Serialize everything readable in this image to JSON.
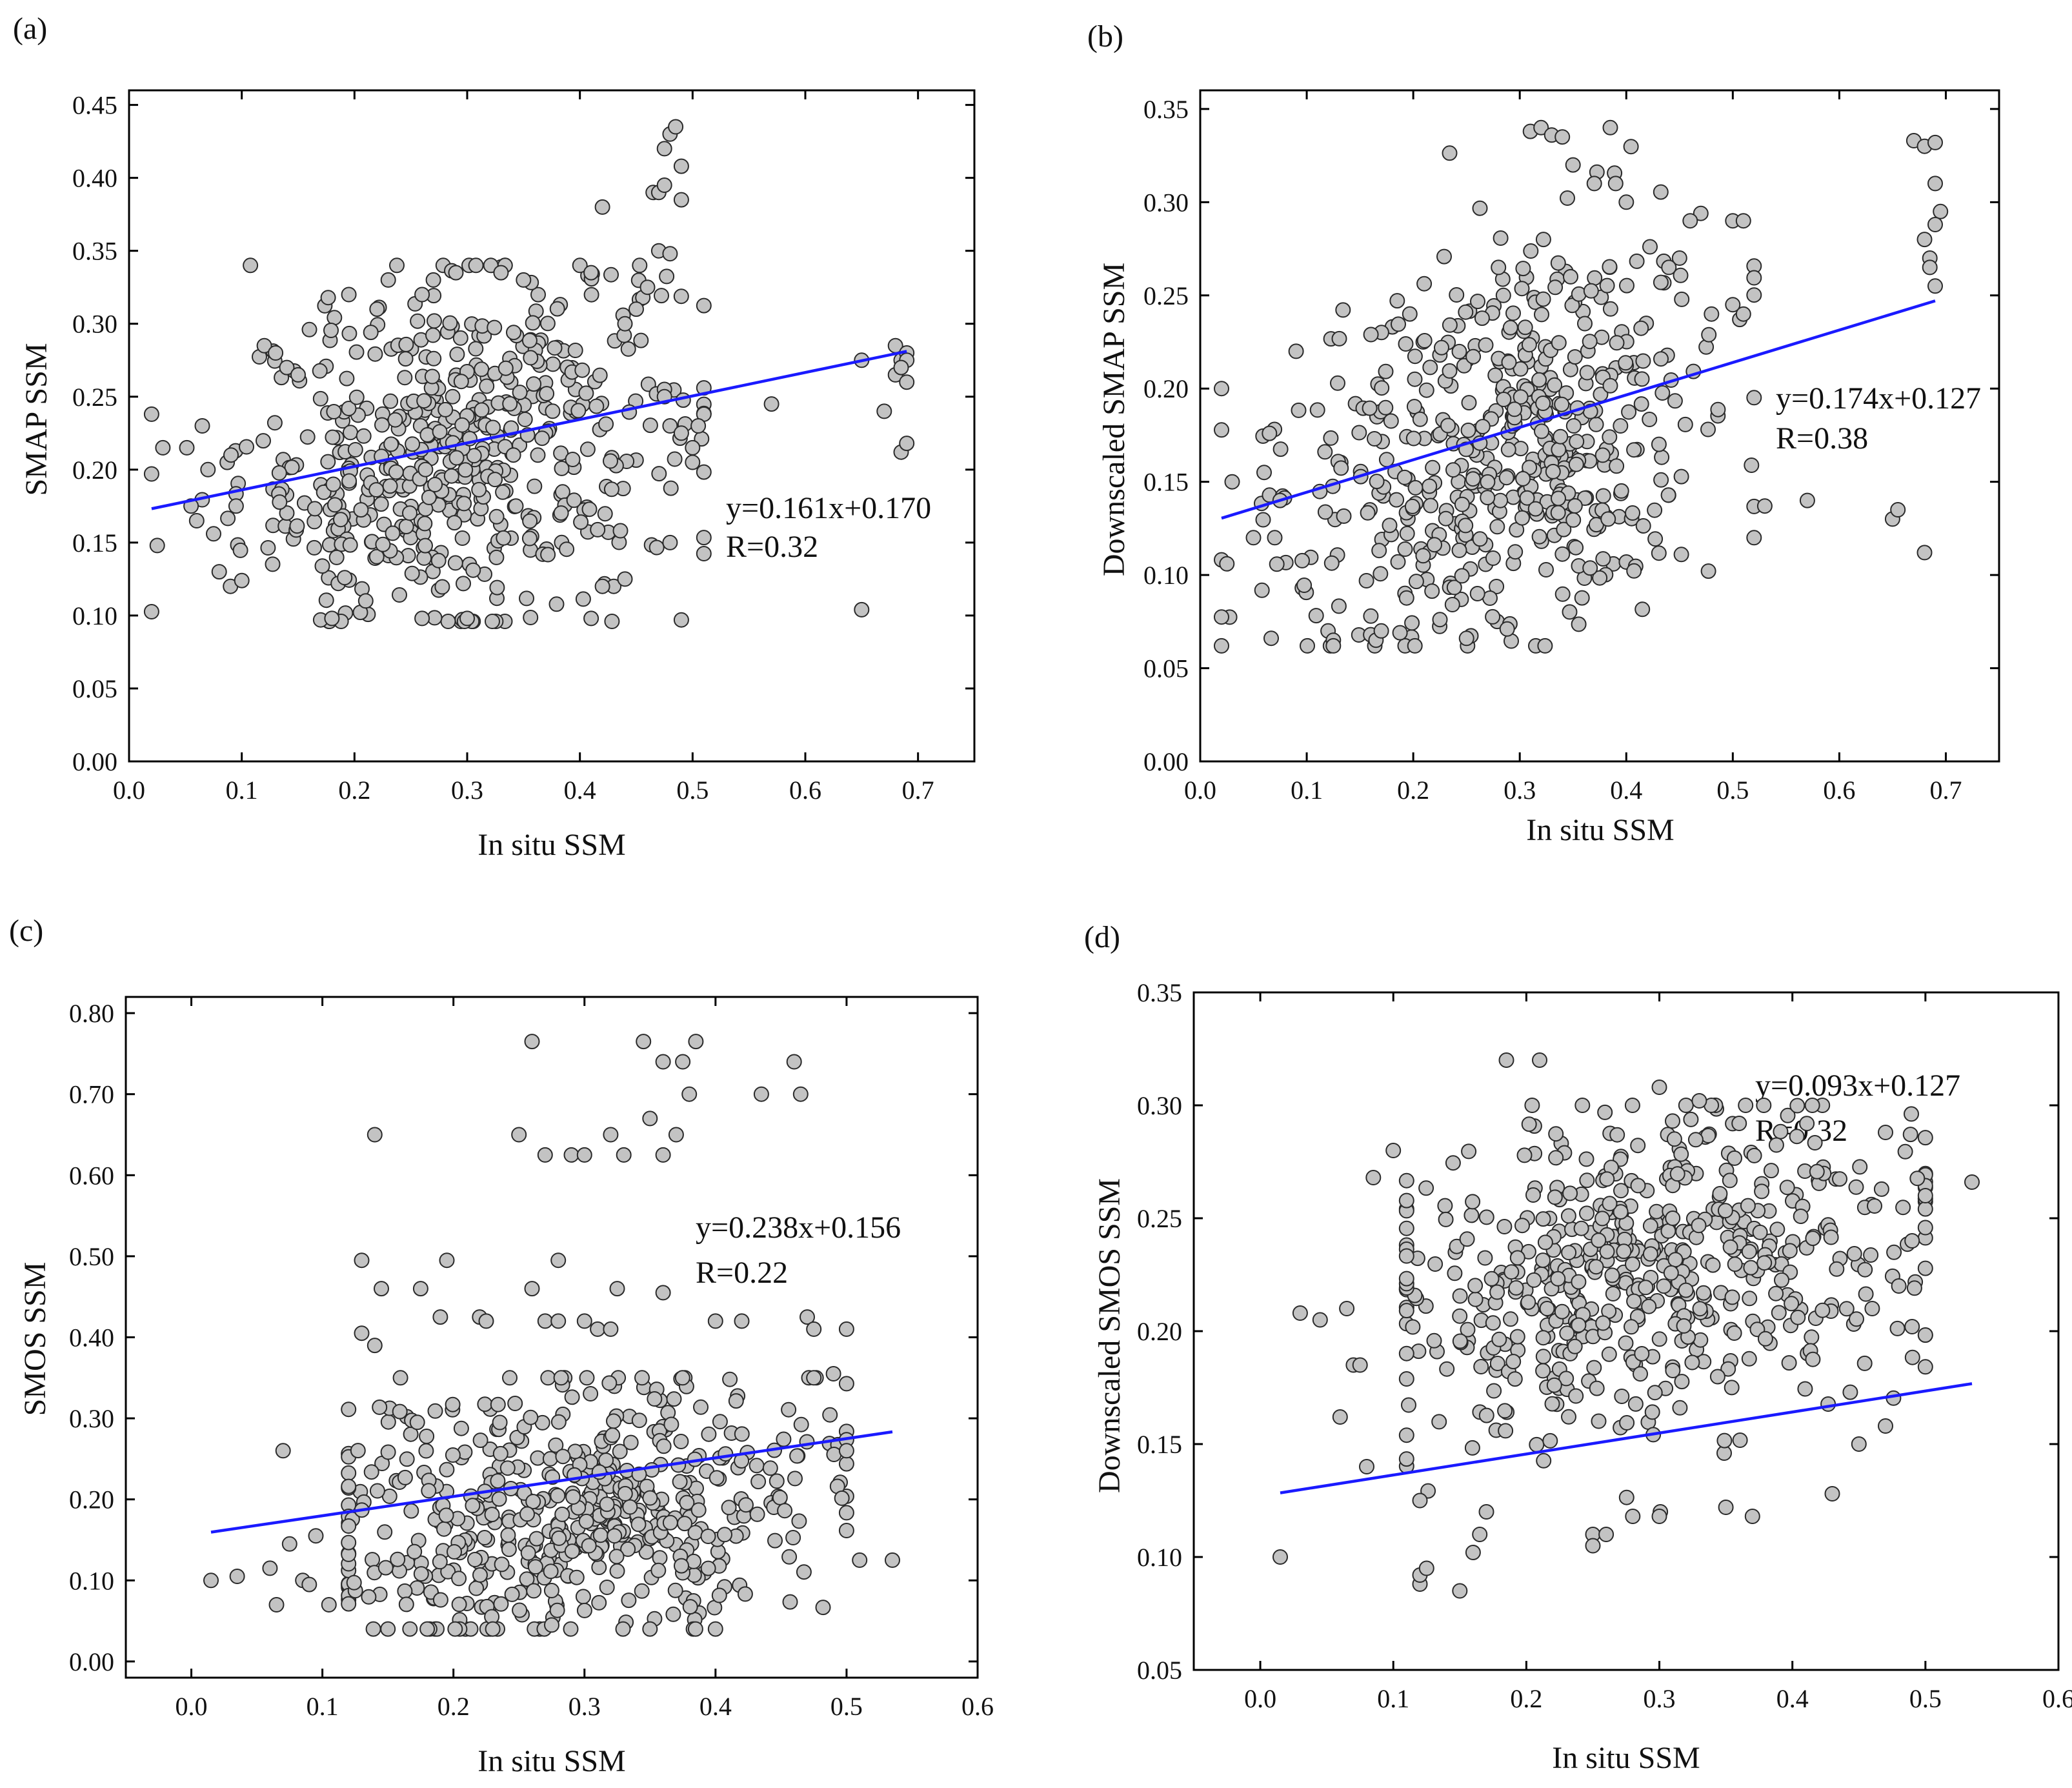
{
  "figure": {
    "xlabel_common": "In situ SSM"
  },
  "chart_data": [
    {
      "panel": "(a)",
      "type": "scatter",
      "xlabel": "In situ SSM",
      "ylabel": "SMAP SSM",
      "xlim": [
        0.0,
        0.75
      ],
      "ylim": [
        0.0,
        0.46
      ],
      "xticks": [
        0.0,
        0.1,
        0.2,
        0.3,
        0.4,
        0.5,
        0.6,
        0.7
      ],
      "xtick_labels": [
        "0.0",
        "0.1",
        "0.2",
        "0.3",
        "0.4",
        "0.5",
        "0.6",
        "0.7"
      ],
      "yticks": [
        0.0,
        0.05,
        0.1,
        0.15,
        0.2,
        0.25,
        0.3,
        0.35,
        0.4,
        0.45
      ],
      "ytick_labels": [
        "0.00",
        "0.05",
        "0.10",
        "0.15",
        "0.20",
        "0.25",
        "0.30",
        "0.35",
        "0.40",
        "0.45"
      ],
      "fit": {
        "slope": 0.161,
        "intercept": 0.17,
        "x_range": [
          0.02,
          0.69
        ]
      },
      "equation": "y=0.161x+0.170",
      "r_text": "R=0.32",
      "cluster": {
        "n": 520,
        "x_mean": 0.29,
        "x_sd": 0.095,
        "x_min": 0.02,
        "x_max": 0.51,
        "y_min": 0.096,
        "y_max": 0.34,
        "y_center": 0.215,
        "y_sd": 0.058
      },
      "points": [
        [
          0.02,
          0.238
        ],
        [
          0.025,
          0.148
        ],
        [
          0.03,
          0.215
        ],
        [
          0.055,
          0.175
        ],
        [
          0.06,
          0.165
        ],
        [
          0.065,
          0.23
        ],
        [
          0.07,
          0.2
        ],
        [
          0.075,
          0.156
        ],
        [
          0.08,
          0.13
        ],
        [
          0.09,
          0.12
        ],
        [
          0.095,
          0.175
        ],
        [
          0.1,
          0.124
        ],
        [
          0.12,
          0.285
        ],
        [
          0.13,
          0.28
        ],
        [
          0.14,
          0.27
        ],
        [
          0.15,
          0.265
        ],
        [
          0.16,
          0.296
        ],
        [
          0.195,
          0.32
        ],
        [
          0.22,
          0.31
        ],
        [
          0.23,
          0.33
        ],
        [
          0.26,
          0.32
        ],
        [
          0.27,
          0.33
        ],
        [
          0.29,
          0.335
        ],
        [
          0.33,
          0.335
        ],
        [
          0.35,
          0.33
        ],
        [
          0.4,
          0.34
        ],
        [
          0.41,
          0.335
        ],
        [
          0.42,
          0.38
        ],
        [
          0.44,
          0.3
        ],
        [
          0.45,
          0.31
        ],
        [
          0.46,
          0.325
        ],
        [
          0.465,
          0.39
        ],
        [
          0.47,
          0.39
        ],
        [
          0.47,
          0.35
        ],
        [
          0.475,
          0.395
        ],
        [
          0.475,
          0.42
        ],
        [
          0.48,
          0.43
        ],
        [
          0.485,
          0.435
        ],
        [
          0.49,
          0.408
        ],
        [
          0.49,
          0.385
        ],
        [
          0.48,
          0.348
        ],
        [
          0.475,
          0.255
        ],
        [
          0.475,
          0.25
        ],
        [
          0.48,
          0.15
        ],
        [
          0.49,
          0.097
        ],
        [
          0.48,
          0.23
        ],
        [
          0.49,
          0.225
        ],
        [
          0.5,
          0.215
        ],
        [
          0.51,
          0.238
        ],
        [
          0.505,
          0.23
        ],
        [
          0.5,
          0.205
        ],
        [
          0.57,
          0.245
        ],
        [
          0.65,
          0.275
        ],
        [
          0.65,
          0.104
        ],
        [
          0.67,
          0.24
        ],
        [
          0.68,
          0.265
        ],
        [
          0.68,
          0.285
        ],
        [
          0.685,
          0.275
        ],
        [
          0.685,
          0.212
        ],
        [
          0.69,
          0.26
        ],
        [
          0.69,
          0.218
        ],
        [
          0.69,
          0.28
        ],
        [
          0.69,
          0.275
        ],
        [
          0.685,
          0.27
        ],
        [
          0.41,
          0.098
        ],
        [
          0.26,
          0.098
        ],
        [
          0.21,
          0.11
        ],
        [
          0.43,
          0.12
        ],
        [
          0.44,
          0.125
        ],
        [
          0.42,
          0.12
        ],
        [
          0.17,
          0.097
        ],
        [
          0.18,
          0.098
        ],
        [
          0.3,
          0.098
        ]
      ]
    },
    {
      "panel": "(b)",
      "type": "scatter",
      "xlabel": "In situ SSM",
      "ylabel": "Downscaled SMAP SSM",
      "xlim": [
        0.0,
        0.75
      ],
      "ylim": [
        0.0,
        0.36
      ],
      "xticks": [
        0.0,
        0.1,
        0.2,
        0.3,
        0.4,
        0.5,
        0.6,
        0.7
      ],
      "xtick_labels": [
        "0.0",
        "0.1",
        "0.2",
        "0.3",
        "0.4",
        "0.5",
        "0.6",
        "0.7"
      ],
      "yticks": [
        0.0,
        0.05,
        0.1,
        0.15,
        0.2,
        0.25,
        0.3,
        0.35
      ],
      "ytick_labels": [
        "0.00",
        "0.05",
        "0.10",
        "0.15",
        "0.20",
        "0.25",
        "0.30",
        "0.35"
      ],
      "fit": {
        "slope": 0.174,
        "intercept": 0.127,
        "x_range": [
          0.02,
          0.69
        ]
      },
      "equation": "y=0.174x+0.127",
      "r_text": "R=0.38",
      "cluster": {
        "n": 520,
        "x_mean": 0.28,
        "x_sd": 0.1,
        "x_min": 0.02,
        "x_max": 0.52,
        "y_min": 0.062,
        "y_max": 0.34,
        "y_center": 0.17,
        "y_sd": 0.052
      },
      "points": [
        [
          0.02,
          0.2
        ],
        [
          0.025,
          0.106
        ],
        [
          0.03,
          0.15
        ],
        [
          0.05,
          0.12
        ],
        [
          0.06,
          0.155
        ],
        [
          0.065,
          0.176
        ],
        [
          0.07,
          0.12
        ],
        [
          0.075,
          0.14
        ],
        [
          0.09,
          0.22
        ],
        [
          0.12,
          0.07
        ],
        [
          0.125,
          0.065
        ],
        [
          0.125,
          0.062
        ],
        [
          0.16,
          0.068
        ],
        [
          0.165,
          0.065
        ],
        [
          0.17,
          0.07
        ],
        [
          0.25,
          0.066
        ],
        [
          0.31,
          0.338
        ],
        [
          0.32,
          0.34
        ],
        [
          0.33,
          0.336
        ],
        [
          0.34,
          0.335
        ],
        [
          0.385,
          0.34
        ],
        [
          0.39,
          0.31
        ],
        [
          0.4,
          0.3
        ],
        [
          0.37,
          0.31
        ],
        [
          0.35,
          0.32
        ],
        [
          0.47,
          0.294
        ],
        [
          0.5,
          0.29
        ],
        [
          0.51,
          0.29
        ],
        [
          0.46,
          0.29
        ],
        [
          0.48,
          0.24
        ],
        [
          0.5,
          0.245
        ],
        [
          0.51,
          0.24
        ],
        [
          0.52,
          0.12
        ],
        [
          0.53,
          0.137
        ],
        [
          0.57,
          0.14
        ],
        [
          0.65,
          0.13
        ],
        [
          0.655,
          0.135
        ],
        [
          0.68,
          0.112
        ],
        [
          0.67,
          0.333
        ],
        [
          0.68,
          0.33
        ],
        [
          0.69,
          0.332
        ],
        [
          0.69,
          0.31
        ],
        [
          0.695,
          0.295
        ],
        [
          0.69,
          0.288
        ],
        [
          0.68,
          0.28
        ],
        [
          0.685,
          0.27
        ],
        [
          0.69,
          0.255
        ],
        [
          0.685,
          0.265
        ],
        [
          0.28,
          0.265
        ],
        [
          0.45,
          0.27
        ],
        [
          0.44,
          0.265
        ]
      ]
    },
    {
      "panel": "(c)",
      "type": "scatter",
      "xlabel": "In situ SSM",
      "ylabel": "SMOS SSM",
      "xlim": [
        -0.05,
        0.6
      ],
      "ylim": [
        -0.02,
        0.82
      ],
      "xticks": [
        0.0,
        0.1,
        0.2,
        0.3,
        0.4,
        0.5,
        0.6
      ],
      "xtick_labels": [
        "0.0",
        "0.1",
        "0.2",
        "0.3",
        "0.4",
        "0.5",
        "0.6"
      ],
      "yticks": [
        0.0,
        0.1,
        0.2,
        0.3,
        0.4,
        0.5,
        0.6,
        0.7,
        0.8
      ],
      "ytick_labels": [
        "0.00",
        "0.10",
        "0.20",
        "0.30",
        "0.40",
        "0.50",
        "0.60",
        "0.70",
        "0.80"
      ],
      "fit": {
        "slope": 0.238,
        "intercept": 0.156,
        "x_range": [
          0.015,
          0.535
        ]
      },
      "equation": "y=0.238x+0.156",
      "r_text": "R=0.22",
      "cluster": {
        "n": 540,
        "x_mean": 0.29,
        "x_sd": 0.1,
        "x_min": 0.12,
        "x_max": 0.5,
        "y_min": 0.04,
        "y_max": 0.35,
        "y_center": 0.18,
        "y_sd": 0.085
      },
      "points": [
        [
          0.015,
          0.1
        ],
        [
          0.035,
          0.105
        ],
        [
          0.06,
          0.115
        ],
        [
          0.065,
          0.07
        ],
        [
          0.07,
          0.26
        ],
        [
          0.075,
          0.145
        ],
        [
          0.085,
          0.1
        ],
        [
          0.09,
          0.095
        ],
        [
          0.095,
          0.155
        ],
        [
          0.105,
          0.07
        ],
        [
          0.14,
          0.65
        ],
        [
          0.13,
          0.495
        ],
        [
          0.145,
          0.46
        ],
        [
          0.175,
          0.46
        ],
        [
          0.19,
          0.425
        ],
        [
          0.195,
          0.495
        ],
        [
          0.22,
          0.425
        ],
        [
          0.225,
          0.42
        ],
        [
          0.25,
          0.65
        ],
        [
          0.26,
          0.765
        ],
        [
          0.27,
          0.625
        ],
        [
          0.28,
          0.495
        ],
        [
          0.29,
          0.625
        ],
        [
          0.3,
          0.625
        ],
        [
          0.32,
          0.65
        ],
        [
          0.33,
          0.625
        ],
        [
          0.345,
          0.765
        ],
        [
          0.35,
          0.67
        ],
        [
          0.36,
          0.625
        ],
        [
          0.36,
          0.74
        ],
        [
          0.37,
          0.65
        ],
        [
          0.375,
          0.74
        ],
        [
          0.38,
          0.7
        ],
        [
          0.385,
          0.765
        ],
        [
          0.435,
          0.7
        ],
        [
          0.46,
          0.74
        ],
        [
          0.465,
          0.7
        ],
        [
          0.47,
          0.425
        ],
        [
          0.475,
          0.41
        ],
        [
          0.5,
          0.41
        ],
        [
          0.49,
          0.355
        ],
        [
          0.475,
          0.35
        ],
        [
          0.5,
          0.26
        ],
        [
          0.51,
          0.125
        ],
        [
          0.535,
          0.125
        ],
        [
          0.36,
          0.455
        ],
        [
          0.325,
          0.46
        ],
        [
          0.26,
          0.46
        ],
        [
          0.27,
          0.42
        ],
        [
          0.28,
          0.42
        ],
        [
          0.3,
          0.42
        ],
        [
          0.31,
          0.41
        ],
        [
          0.32,
          0.41
        ],
        [
          0.4,
          0.42
        ],
        [
          0.42,
          0.42
        ],
        [
          0.13,
          0.405
        ],
        [
          0.14,
          0.39
        ],
        [
          0.4,
          0.04
        ],
        [
          0.35,
          0.04
        ],
        [
          0.23,
          0.04
        ],
        [
          0.15,
          0.04
        ],
        [
          0.275,
          0.045
        ]
      ]
    },
    {
      "panel": "(d)",
      "type": "scatter",
      "xlabel": "In situ SSM",
      "ylabel": "Downscaled SMOS SSM",
      "xlim": [
        -0.05,
        0.6
      ],
      "ylim": [
        0.05,
        0.35
      ],
      "xticks": [
        0.0,
        0.1,
        0.2,
        0.3,
        0.4,
        0.5,
        0.6
      ],
      "xtick_labels": [
        "0.0",
        "0.1",
        "0.2",
        "0.3",
        "0.4",
        "0.5",
        "0.6"
      ],
      "yticks": [
        0.05,
        0.1,
        0.15,
        0.2,
        0.25,
        0.3,
        0.35
      ],
      "ytick_labels": [
        "0.05",
        "0.10",
        "0.15",
        "0.20",
        "0.25",
        "0.30",
        "0.35"
      ],
      "fit": {
        "slope": 0.093,
        "intercept": 0.127,
        "x_range": [
          0.015,
          0.535
        ]
      },
      "equation": "y=0.093x+0.127",
      "r_text": "R=0.32",
      "cluster": {
        "n": 560,
        "x_mean": 0.29,
        "x_sd": 0.1,
        "x_min": 0.11,
        "x_max": 0.5,
        "y_min": 0.12,
        "y_max": 0.3,
        "y_center": 0.225,
        "y_sd": 0.036
      },
      "points": [
        [
          0.015,
          0.1
        ],
        [
          0.03,
          0.208
        ],
        [
          0.045,
          0.205
        ],
        [
          0.06,
          0.162
        ],
        [
          0.065,
          0.21
        ],
        [
          0.07,
          0.185
        ],
        [
          0.075,
          0.185
        ],
        [
          0.08,
          0.14
        ],
        [
          0.085,
          0.268
        ],
        [
          0.1,
          0.28
        ],
        [
          0.12,
          0.088
        ],
        [
          0.12,
          0.092
        ],
        [
          0.125,
          0.095
        ],
        [
          0.12,
          0.125
        ],
        [
          0.15,
          0.085
        ],
        [
          0.16,
          0.102
        ],
        [
          0.165,
          0.11
        ],
        [
          0.17,
          0.12
        ],
        [
          0.185,
          0.32
        ],
        [
          0.21,
          0.32
        ],
        [
          0.25,
          0.11
        ],
        [
          0.26,
          0.11
        ],
        [
          0.25,
          0.105
        ],
        [
          0.28,
          0.118
        ],
        [
          0.3,
          0.118
        ],
        [
          0.35,
          0.122
        ],
        [
          0.37,
          0.118
        ],
        [
          0.43,
          0.128
        ],
        [
          0.45,
          0.15
        ],
        [
          0.47,
          0.158
        ],
        [
          0.46,
          0.21
        ],
        [
          0.48,
          0.22
        ],
        [
          0.49,
          0.24
        ],
        [
          0.5,
          0.26
        ],
        [
          0.535,
          0.266
        ],
        [
          0.49,
          0.202
        ],
        [
          0.47,
          0.288
        ],
        [
          0.3,
          0.308
        ],
        [
          0.32,
          0.3
        ],
        [
          0.33,
          0.302
        ],
        [
          0.36,
          0.292
        ],
        [
          0.31,
          0.25
        ]
      ]
    }
  ]
}
